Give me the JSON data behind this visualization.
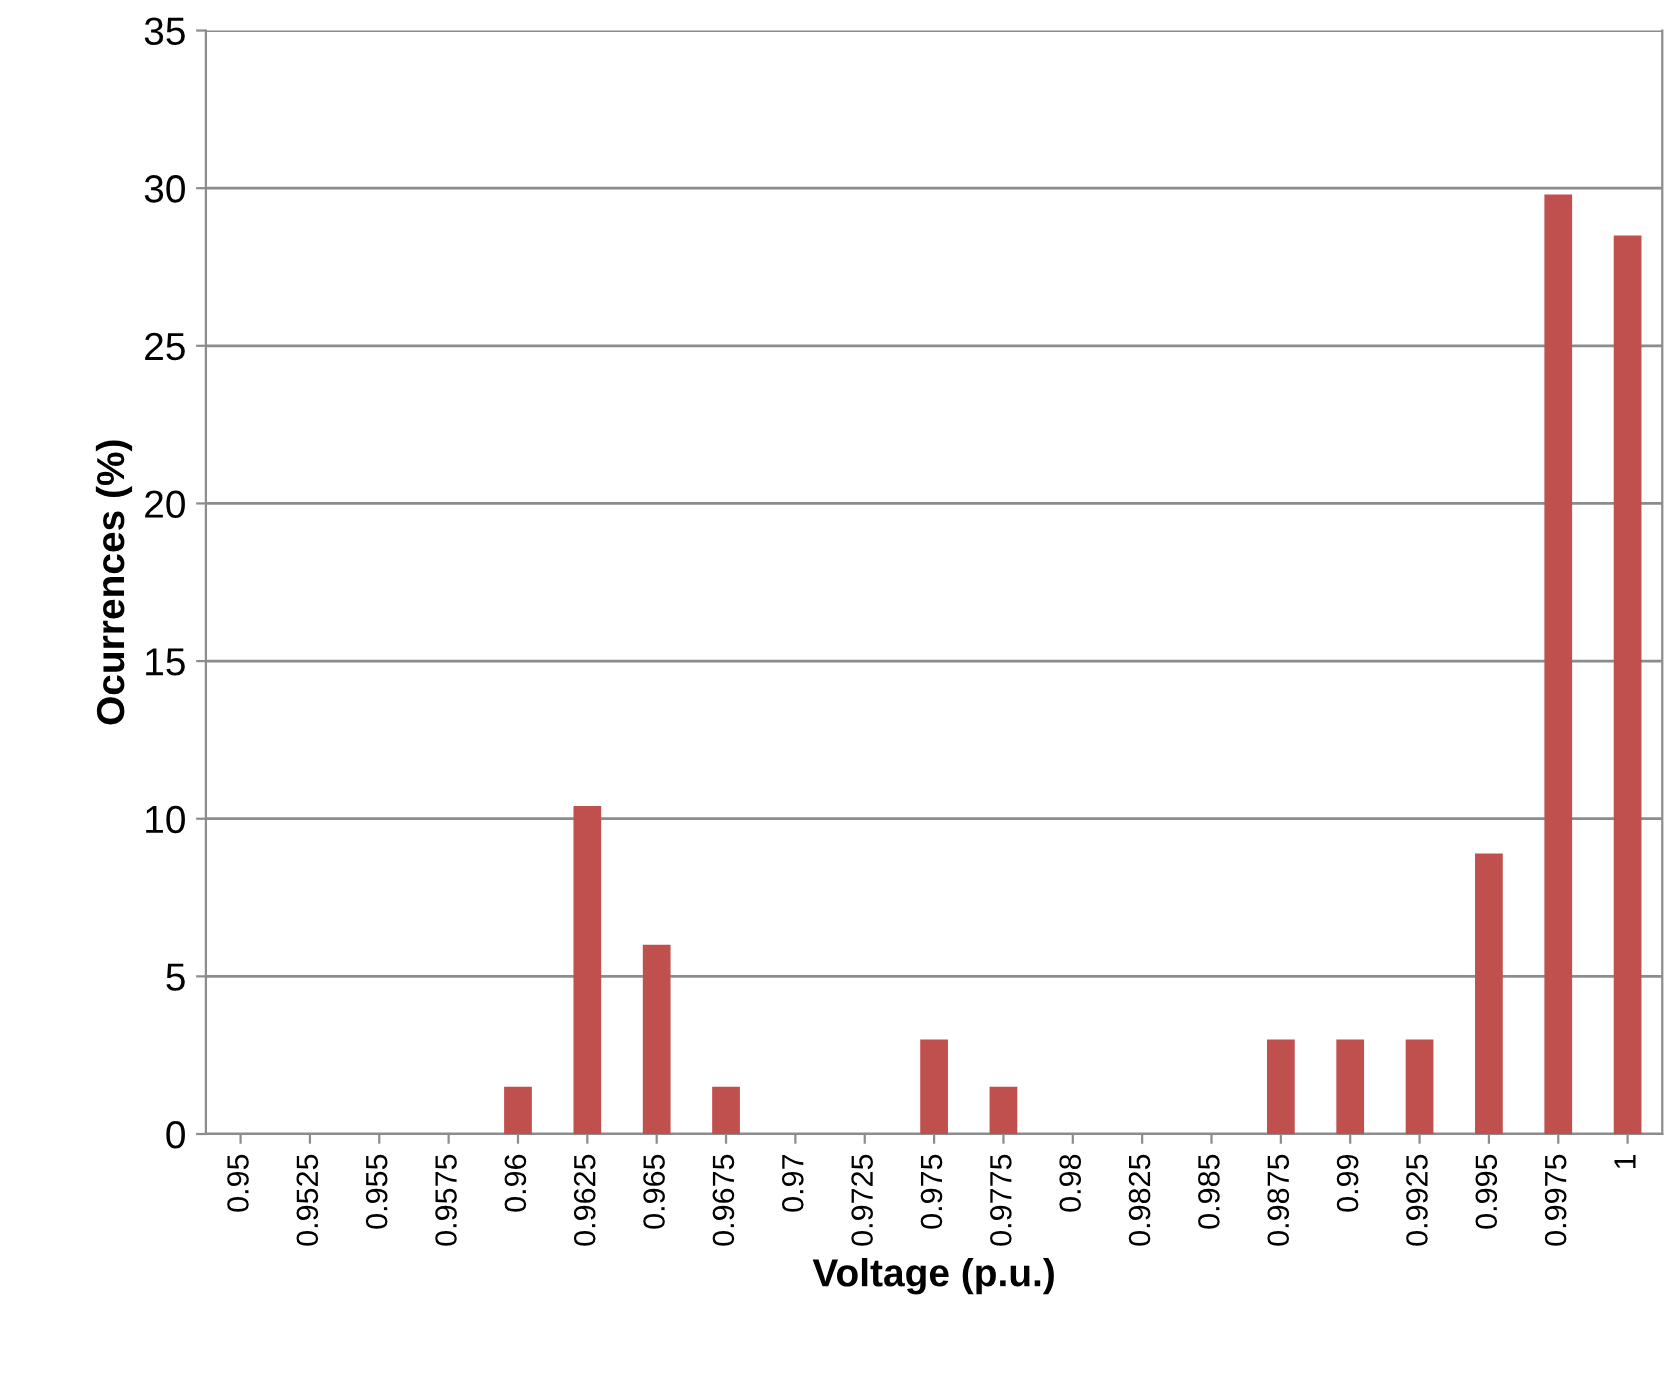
{
  "chart_data": {
    "type": "bar",
    "xlabel": "Voltage (p.u.)",
    "ylabel": "Ocurrences (%)",
    "categories": [
      "0.95",
      "0.9525",
      "0.955",
      "0.9575",
      "0.96",
      "0.9625",
      "0.965",
      "0.9675",
      "0.97",
      "0.9725",
      "0.975",
      "0.9775",
      "0.98",
      "0.9825",
      "0.985",
      "0.9875",
      "0.99",
      "0.9925",
      "0.995",
      "0.9975",
      "1"
    ],
    "values": [
      0,
      0,
      0,
      0,
      1.5,
      10.4,
      6,
      1.5,
      0,
      0,
      3,
      1.5,
      0,
      0,
      0,
      3,
      3,
      3,
      8.9,
      29.8,
      28.5
    ],
    "color": "#c0504d",
    "ylim": [
      0,
      35
    ],
    "yticks": [
      0,
      5,
      10,
      15,
      20,
      25,
      30,
      35
    ],
    "grid": "y",
    "legend": false
  }
}
